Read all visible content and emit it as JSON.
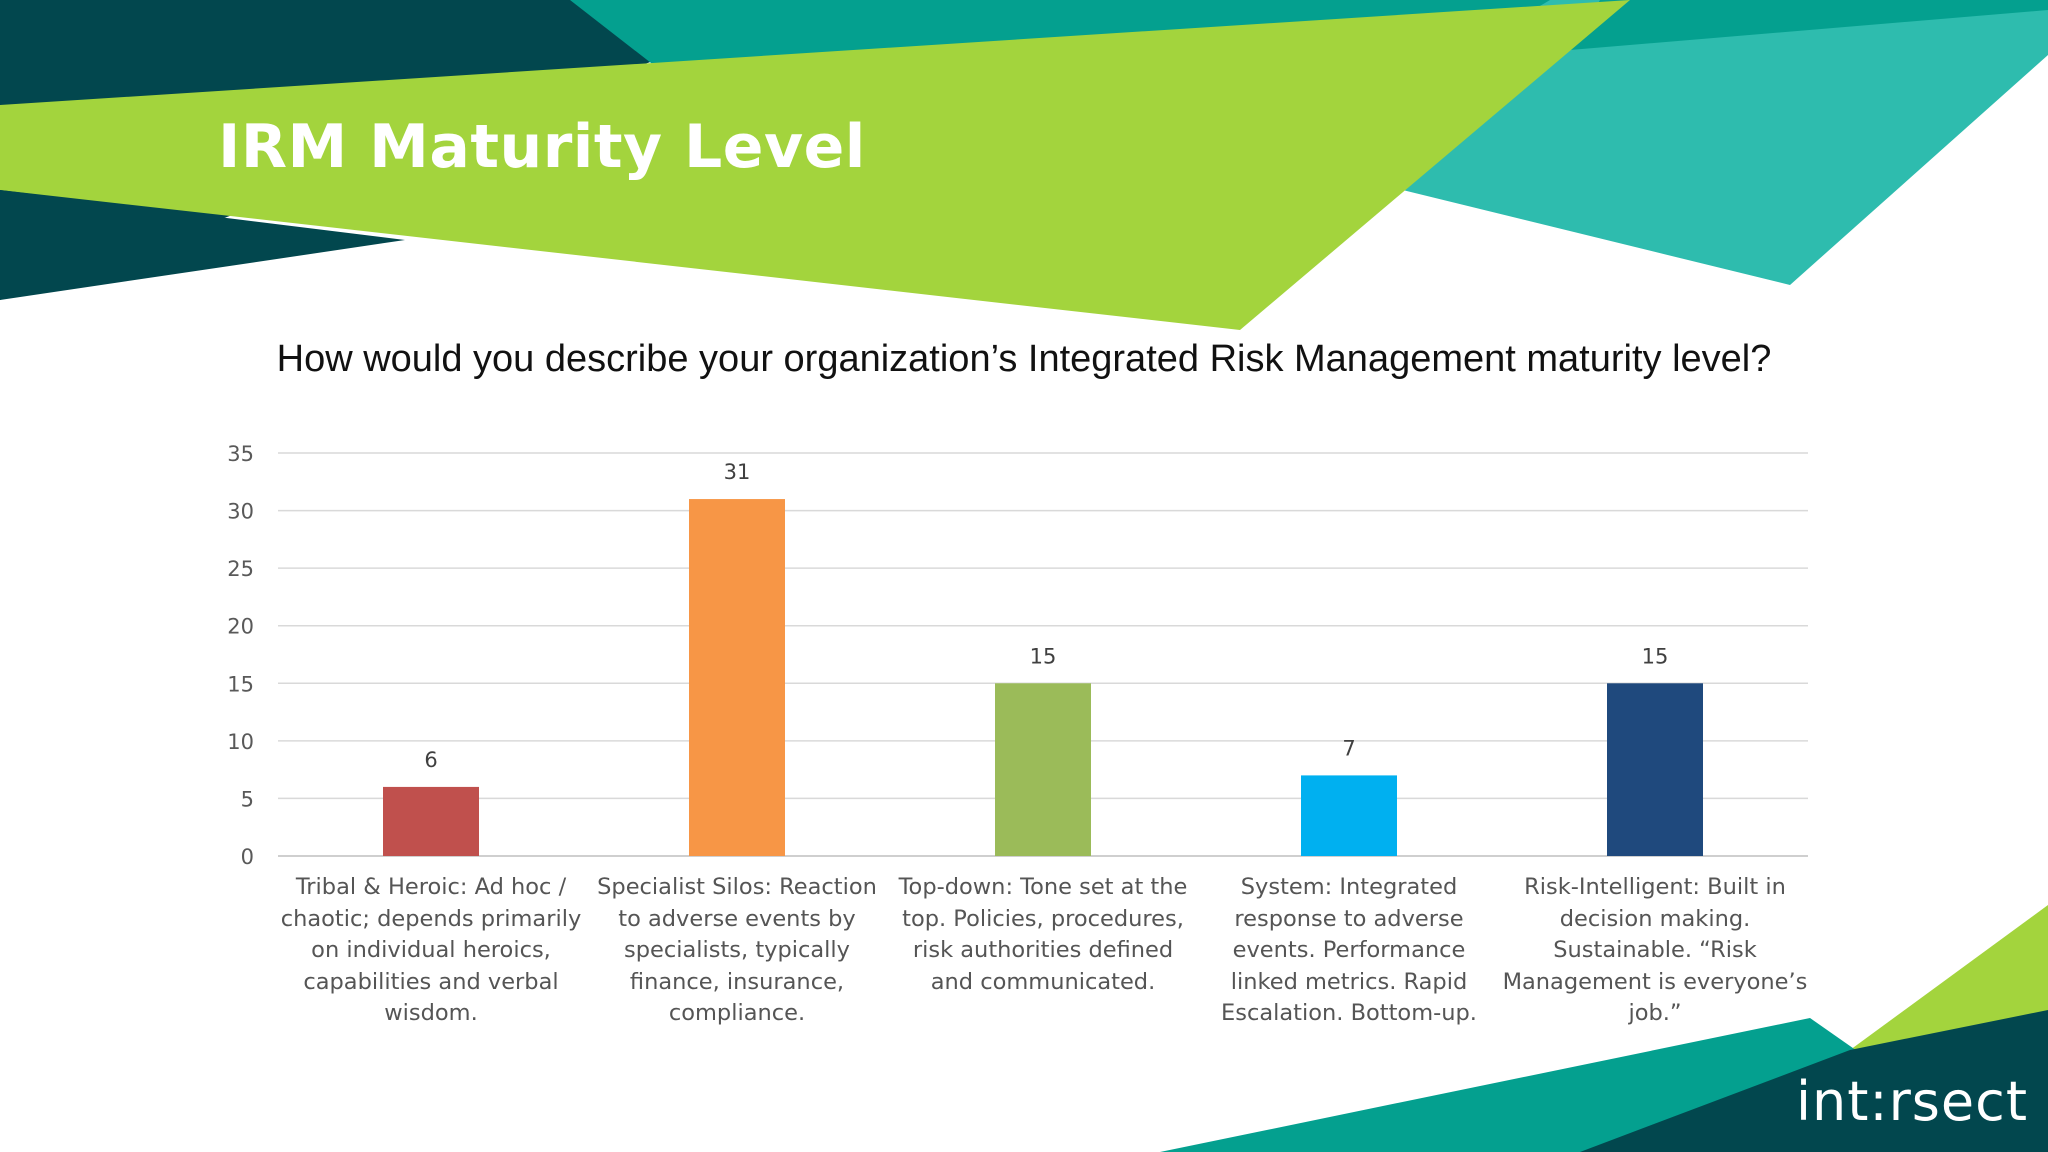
{
  "slide": {
    "title": "IRM Maturity Level",
    "logo_text": "int:rsect"
  },
  "colors": {
    "dark_teal": "#02474e",
    "teal": "#04a08f",
    "light_teal": "#2ebcae",
    "lime": "#a3d43d",
    "grid": "#d9d9d9",
    "axis_text": "#595959"
  },
  "chart_data": {
    "type": "bar",
    "title": "How would you describe your organization’s Integrated Risk Management maturity level?",
    "categories": [
      "Tribal & Heroic: Ad hoc / chaotic; depends primarily on individual heroics, capabilities and verbal wisdom.",
      "Specialist Silos: Reaction to adverse events by specialists, typically finance, insurance, compliance.",
      "Top-down: Tone set at the top. Policies, procedures, risk authorities defined and communicated.",
      "System: Integrated response to adverse events. Performance linked metrics. Rapid Escalation. Bottom-up.",
      "Risk-Intelligent: Built in decision making. Sustainable. “Risk Management is everyone’s job.”"
    ],
    "values": [
      6,
      31,
      15,
      7,
      15
    ],
    "bar_colors": [
      "#c0504d",
      "#f79646",
      "#9bbb59",
      "#00b0f0",
      "#1f497d"
    ],
    "ylim": [
      0,
      35
    ],
    "yticks": [
      0,
      5,
      10,
      15,
      20,
      25,
      30,
      35
    ],
    "xlabel": "",
    "ylabel": "",
    "grid": true,
    "data_labels": true
  }
}
